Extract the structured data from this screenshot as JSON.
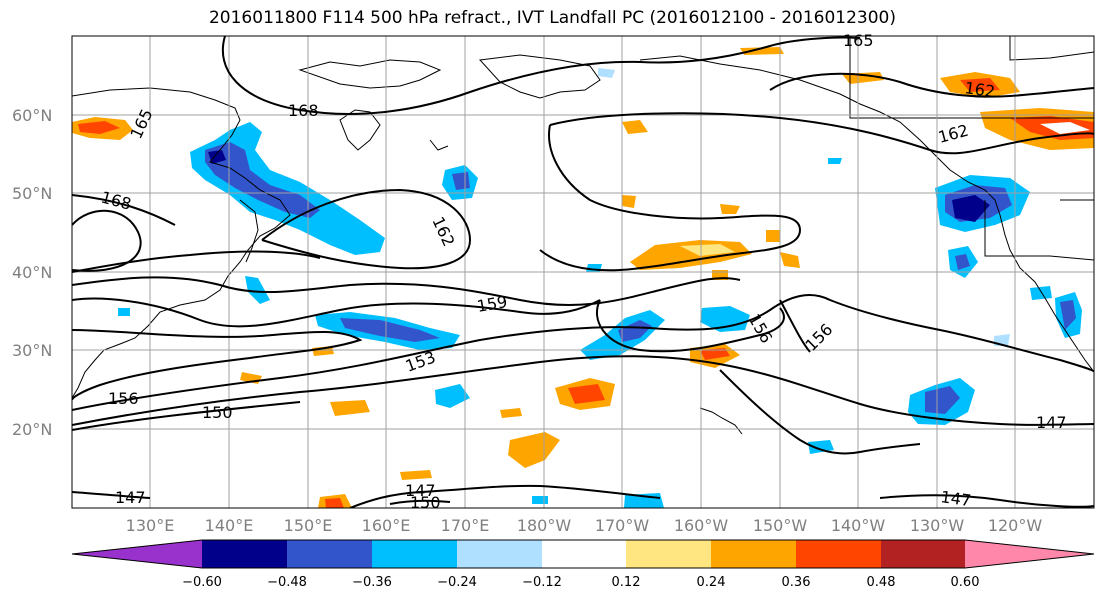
{
  "title": "2016011800 F114 500 hPa refract., IVT Landfall PC (2016012100 - 2016012300)",
  "lat_labels": [
    "60°N",
    "50°N",
    "40°N",
    "30°N",
    "20°N"
  ],
  "lon_labels": [
    "130°E",
    "140°E",
    "150°E",
    "160°E",
    "170°E",
    "180°W",
    "170°W",
    "160°W",
    "150°W",
    "140°W",
    "130°W",
    "120°W"
  ],
  "contour_labels": [
    "165",
    "168",
    "168",
    "162",
    "162",
    "162",
    "159",
    "156",
    "156",
    "153",
    "156",
    "150",
    "147",
    "147",
    "150",
    "147",
    "147",
    "165"
  ],
  "colorbar": {
    "ticks": [
      "−0.60",
      "−0.48",
      "−0.36",
      "−0.24",
      "−0.12",
      "0.12",
      "0.24",
      "0.36",
      "0.48",
      "0.60"
    ],
    "colors": [
      "#9932cc",
      "#00008b",
      "#3355cc",
      "#00bfff",
      "#b0e0ff",
      "#ffffff",
      "#ffe680",
      "#ffa500",
      "#ff4500",
      "#b22222",
      "#ff88aa"
    ]
  }
}
